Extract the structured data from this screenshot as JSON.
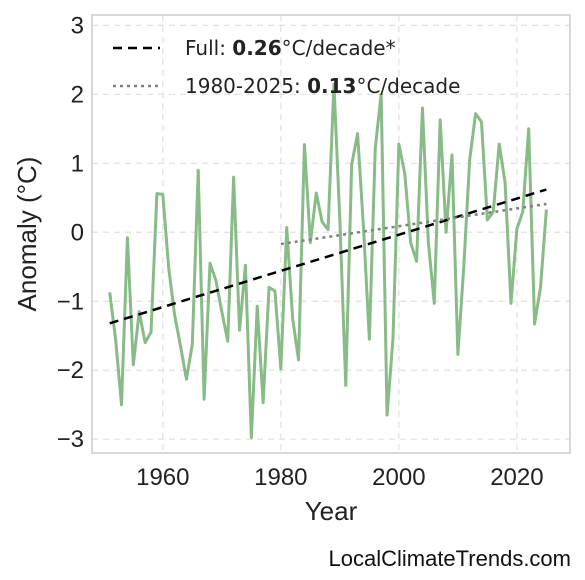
{
  "credit": "LocalClimateTrends.com",
  "colors": {
    "series": "#88bb88",
    "trend_full": "#000000",
    "trend_recent": "#808080",
    "grid": "#e0e0e0",
    "frame": "#cccccc"
  },
  "chart_data": {
    "type": "line",
    "title": "",
    "xlabel": "Year",
    "ylabel": "Anomaly (°C)",
    "xlim": [
      1948,
      2029
    ],
    "ylim": [
      -3.2,
      3.15
    ],
    "xticks": [
      1960,
      1980,
      2000,
      2020
    ],
    "xtick_labels": [
      "1960",
      "1980",
      "2000",
      "2020"
    ],
    "yticks": [
      -3,
      -2,
      -1,
      0,
      1,
      2,
      3
    ],
    "ytick_labels": [
      "−3",
      "−2",
      "−1",
      "0",
      "1",
      "2",
      "3"
    ],
    "grid": true,
    "legend_position": "top-left",
    "series": [
      {
        "x": [
          1951,
          1952,
          1953,
          1954,
          1955,
          1956,
          1957,
          1958,
          1959,
          1960,
          1961,
          1962,
          1963,
          1964,
          1965,
          1966,
          1967,
          1968,
          1969,
          1970,
          1971,
          1972,
          1973,
          1974,
          1975,
          1976,
          1977,
          1978,
          1979,
          1980,
          1981,
          1982,
          1983,
          1984,
          1985,
          1986,
          1987,
          1988,
          1989,
          1990,
          1991,
          1992,
          1993,
          1994,
          1995,
          1996,
          1997,
          1998,
          1999,
          2000,
          2001,
          2002,
          2003,
          2004,
          2005,
          2006,
          2007,
          2008,
          2009,
          2010,
          2011,
          2012,
          2013,
          2014,
          2015,
          2016,
          2017,
          2018,
          2019,
          2020,
          2021,
          2022,
          2023,
          2024,
          2025
        ],
        "y": [
          -0.87,
          -1.55,
          -2.5,
          -0.08,
          -1.92,
          -1.15,
          -1.6,
          -1.45,
          0.56,
          0.55,
          -0.52,
          -1.2,
          -1.65,
          -2.13,
          -1.62,
          0.9,
          -2.42,
          -0.45,
          -0.7,
          -1.15,
          -1.58,
          0.8,
          -1.42,
          -0.48,
          -2.98,
          -1.07,
          -2.47,
          -0.8,
          -0.85,
          -1.98,
          0.07,
          -1.25,
          -1.85,
          1.27,
          -0.15,
          0.57,
          0.15,
          0.04,
          2.15,
          0.17,
          -2.22,
          0.98,
          1.43,
          0.08,
          -1.55,
          1.22,
          2.0,
          -2.65,
          -1.55,
          1.28,
          0.85,
          -0.15,
          -0.42,
          1.8,
          -0.15,
          -1.03,
          1.63,
          0.0,
          1.12,
          -1.77,
          -0.5,
          1.05,
          1.72,
          1.6,
          0.18,
          0.3,
          1.28,
          0.72,
          -1.03,
          0.05,
          0.3,
          1.5,
          -1.33,
          -0.8,
          0.33
        ]
      }
    ],
    "trends": [
      {
        "label_prefix": "Full: ",
        "label_value": "0.26",
        "label_suffix": "°C/decade*",
        "style": "dashed",
        "x": [
          1951,
          2025
        ],
        "y": [
          -1.32,
          0.62
        ]
      },
      {
        "label_prefix": "1980-2025: ",
        "label_value": "0.13",
        "label_suffix": "°C/decade",
        "style": "dotted",
        "x": [
          1980,
          2025
        ],
        "y": [
          -0.17,
          0.41
        ]
      }
    ]
  }
}
